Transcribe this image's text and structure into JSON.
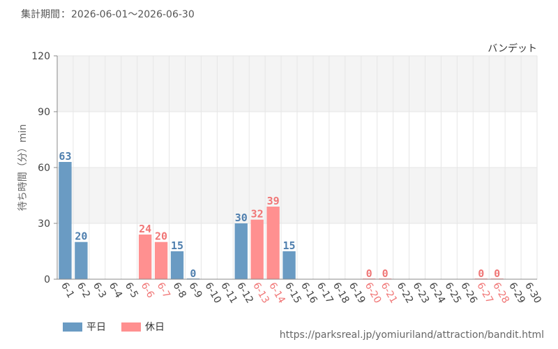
{
  "header": {
    "period_label": "集計期間",
    "separator": "：",
    "period_range": "2026-06-01〜2026-06-30"
  },
  "colors": {
    "weekday": "#6a9bc3",
    "holiday": "#ff9090",
    "weekday_label": "#4f7fae",
    "holiday_label": "#f07575",
    "grid_band": "#f4f4f4",
    "grid_line": "#e6e6e6"
  },
  "legend": [
    {
      "label": "平日",
      "color": "#6a9bc3"
    },
    {
      "label": "休日",
      "color": "#ff9090"
    }
  ],
  "source_url": "https://parksreal.jp/yomiuriland/attraction/bandit.html",
  "chart_data": {
    "type": "bar",
    "title": "バンデット",
    "ylabel": "待ち時間（分）min",
    "xlabel": "",
    "ylim": [
      0,
      120
    ],
    "yticks": [
      0,
      30,
      60,
      90,
      120
    ],
    "grid": true,
    "legend_position": "bottom-left",
    "categories": [
      "6-1",
      "6-2",
      "6-3",
      "6-4",
      "6-5",
      "6-6",
      "6-7",
      "6-8",
      "6-9",
      "6-10",
      "6-11",
      "6-12",
      "6-13",
      "6-14",
      "6-15",
      "6-16",
      "6-17",
      "6-18",
      "6-19",
      "6-20",
      "6-21",
      "6-22",
      "6-23",
      "6-24",
      "6-25",
      "6-26",
      "6-27",
      "6-28",
      "6-29",
      "6-30"
    ],
    "day_type": [
      "weekday",
      "weekday",
      "weekday",
      "weekday",
      "weekday",
      "holiday",
      "holiday",
      "weekday",
      "weekday",
      "weekday",
      "weekday",
      "weekday",
      "holiday",
      "holiday",
      "weekday",
      "weekday",
      "weekday",
      "weekday",
      "weekday",
      "holiday",
      "holiday",
      "weekday",
      "weekday",
      "weekday",
      "weekday",
      "weekday",
      "holiday",
      "holiday",
      "weekday",
      "weekday"
    ],
    "values": [
      63,
      20,
      null,
      null,
      null,
      24,
      20,
      15,
      0,
      null,
      null,
      30,
      32,
      39,
      15,
      null,
      null,
      null,
      null,
      0,
      0,
      null,
      null,
      null,
      null,
      null,
      0,
      0,
      null,
      null
    ],
    "series": [
      {
        "name": "平日",
        "values": [
          63,
          20,
          null,
          null,
          null,
          null,
          null,
          15,
          0,
          null,
          null,
          30,
          null,
          null,
          15,
          null,
          null,
          null,
          null,
          null,
          null,
          null,
          null,
          null,
          null,
          null,
          null,
          null,
          null,
          null
        ]
      },
      {
        "name": "休日",
        "values": [
          null,
          null,
          null,
          null,
          null,
          24,
          20,
          null,
          null,
          null,
          null,
          null,
          32,
          39,
          null,
          null,
          null,
          null,
          null,
          0,
          0,
          null,
          null,
          null,
          null,
          null,
          0,
          0,
          null,
          null
        ]
      }
    ]
  }
}
